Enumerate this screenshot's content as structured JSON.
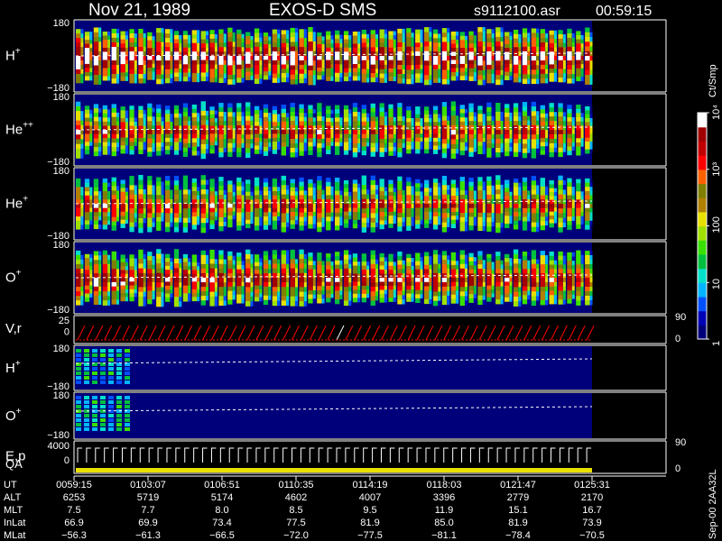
{
  "header": {
    "date": "Nov 21, 1989",
    "instrument": "EXOS-D SMS",
    "filename": "s9112100.asr",
    "time": "00:59:15"
  },
  "colorbar": {
    "unit": "Ct/Smp",
    "scale": "log",
    "range": [
      1,
      10000
    ],
    "tick_labels": [
      "10⁴",
      "10³",
      "100",
      "10",
      "1"
    ],
    "tick_values": [
      10000,
      1000,
      100,
      10,
      1
    ],
    "colors_low_to_high": [
      "#00007a",
      "#0000b4",
      "#0050ff",
      "#00b4ff",
      "#00e0c8",
      "#00c040",
      "#38e000",
      "#a0e000",
      "#e8e000",
      "#b08000",
      "#808000",
      "#ff6000",
      "#ff0000",
      "#c00000",
      "#a00000",
      "#ffffff"
    ]
  },
  "footer_note": "Sep-00 2AA32L",
  "chart_data": [
    {
      "type": "heatmap",
      "panel": "H+",
      "label": "H",
      "superscript": "+",
      "y_ticks": [
        "180",
        "−180"
      ],
      "ylim": [
        -180,
        180
      ],
      "intensity": "high"
    },
    {
      "type": "heatmap",
      "panel": "He++",
      "label": "He",
      "superscript": "++",
      "y_ticks": [
        "180",
        "−180"
      ],
      "ylim": [
        -180,
        180
      ],
      "intensity": "medium"
    },
    {
      "type": "heatmap",
      "panel": "He+",
      "label": "He",
      "superscript": "+",
      "y_ticks": [
        "180",
        "−180"
      ],
      "ylim": [
        -180,
        180
      ],
      "intensity": "medium"
    },
    {
      "type": "heatmap",
      "panel": "O+",
      "label": "O",
      "superscript": "+",
      "y_ticks": [
        "180",
        "−180"
      ],
      "ylim": [
        -180,
        180
      ],
      "intensity": "medium-high"
    },
    {
      "type": "line",
      "panel": "V,r",
      "label": "V,r",
      "y_ticks": [
        "25",
        "0"
      ],
      "right_ticks": [
        "90",
        "0"
      ],
      "ylim": [
        0,
        25
      ]
    },
    {
      "type": "heatmap",
      "panel": "H+ (low)",
      "label": "H",
      "superscript": "+",
      "y_ticks": [
        "180",
        "−180"
      ],
      "ylim": [
        -180,
        180
      ],
      "intensity": "low"
    },
    {
      "type": "heatmap",
      "panel": "O+ (low)",
      "label": "O",
      "superscript": "+",
      "y_ticks": [
        "180",
        "−180"
      ],
      "ylim": [
        -180,
        180
      ],
      "intensity": "low"
    },
    {
      "type": "line",
      "panel": "E,p",
      "label": "E,p",
      "label2": "QA",
      "y_ticks": [
        "4000",
        "0"
      ],
      "right_ticks": [
        "90",
        "0"
      ],
      "ylim": [
        0,
        4000
      ]
    }
  ],
  "ephemeris": {
    "row_labels": [
      "UT",
      "ALT",
      "MLT",
      "InLat",
      "MLat"
    ],
    "columns": [
      {
        "UT": "0059:15",
        "ALT": "6253",
        "MLT": "7.5",
        "InLat": "66.9",
        "MLat": "−56.3"
      },
      {
        "UT": "0103:07",
        "ALT": "5719",
        "MLT": "7.7",
        "InLat": "69.9",
        "MLat": "−61.3"
      },
      {
        "UT": "0106:51",
        "ALT": "5174",
        "MLT": "8.0",
        "InLat": "73.4",
        "MLat": "−66.5"
      },
      {
        "UT": "0110:35",
        "ALT": "4602",
        "MLT": "8.5",
        "InLat": "77.5",
        "MLat": "−72.0"
      },
      {
        "UT": "0114:19",
        "ALT": "4007",
        "MLT": "9.5",
        "InLat": "81.9",
        "MLat": "−77.5"
      },
      {
        "UT": "0118:03",
        "ALT": "3396",
        "MLT": "11.9",
        "InLat": "85.0",
        "MLat": "−81.1"
      },
      {
        "UT": "0121:47",
        "ALT": "2779",
        "MLT": "15.1",
        "InLat": "81.9",
        "MLat": "−78.4"
      },
      {
        "UT": "0125:31",
        "ALT": "2170",
        "MLT": "16.7",
        "InLat": "73.9",
        "MLat": "−70.5"
      }
    ]
  }
}
